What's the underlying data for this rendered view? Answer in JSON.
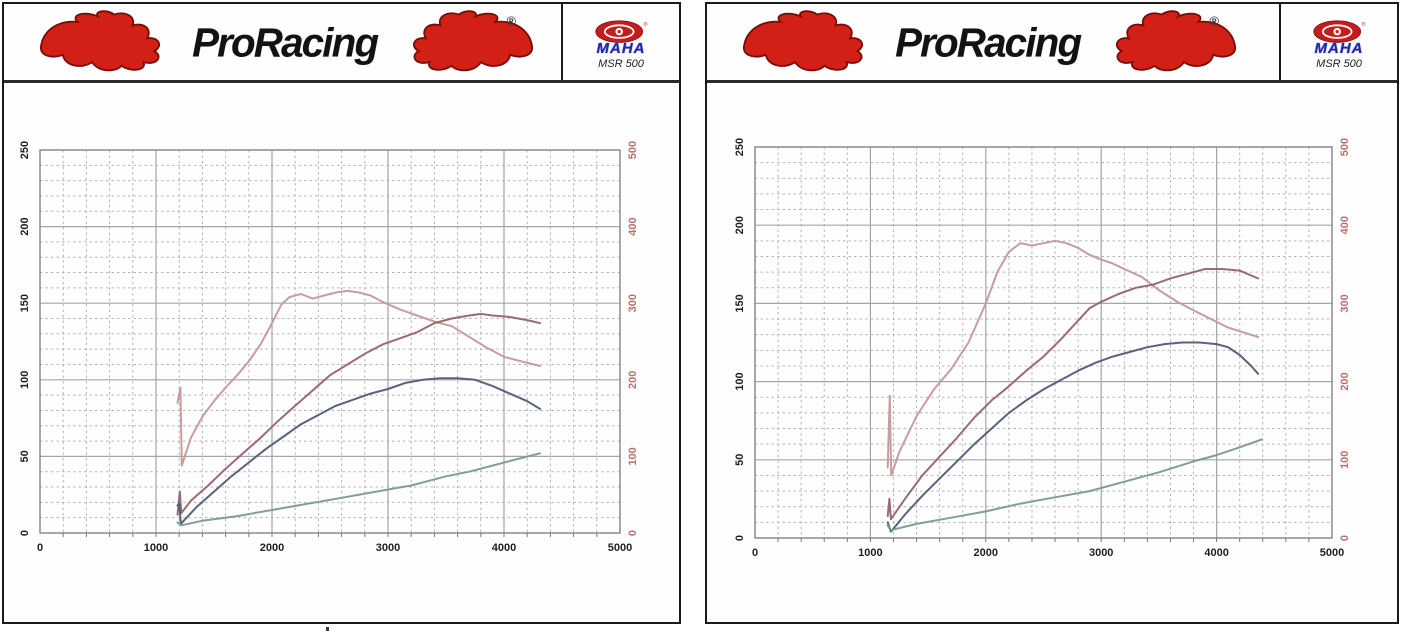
{
  "header": {
    "brand": "ProRacing",
    "reg": "®",
    "maha": "MAHA",
    "model": "MSR 500"
  },
  "colors": {
    "torque": "#c49898",
    "power_tuned": "#96636e",
    "power_stock": "#4f5b76",
    "loss": "#7b9b8b",
    "left_axis_label": "#1f1f1f",
    "right_axis_label": "#b5736c",
    "grid_major": "#a5a5a5",
    "grid_minor": "#b5b5b5",
    "flame_red": "#d32016",
    "maha_red": "#c41d1d",
    "maha_blue": "#2028b0"
  },
  "chart_data": [
    {
      "type": "line",
      "title": "",
      "x_range": [
        0,
        5000
      ],
      "x_ticks": [
        0,
        1000,
        2000,
        3000,
        4000,
        5000
      ],
      "x_minor_step": 200,
      "y_left_range": [
        0,
        250
      ],
      "y_left_ticks": [
        0,
        50,
        100,
        150,
        200,
        250
      ],
      "y_left_minor_step": 10,
      "y_right_range": [
        0,
        500
      ],
      "y_right_ticks": [
        0,
        100,
        200,
        300,
        400,
        500
      ],
      "grid": "dashed-minor",
      "legend": "none",
      "series": [
        {
          "id": "torque-curve",
          "axis": "right",
          "color": "#c49898",
          "points": [
            [
              1185,
              170
            ],
            [
              1210,
              190
            ],
            [
              1222,
              88
            ],
            [
              1300,
              124
            ],
            [
              1400,
              152
            ],
            [
              1500,
              172
            ],
            [
              1600,
              190
            ],
            [
              1700,
              206
            ],
            [
              1800,
              224
            ],
            [
              1900,
              246
            ],
            [
              2000,
              274
            ],
            [
              2080,
              298
            ],
            [
              2150,
              308
            ],
            [
              2250,
              312
            ],
            [
              2350,
              306
            ],
            [
              2450,
              310
            ],
            [
              2550,
              314
            ],
            [
              2650,
              316
            ],
            [
              2750,
              314
            ],
            [
              2850,
              310
            ],
            [
              2950,
              302
            ],
            [
              3100,
              292
            ],
            [
              3250,
              284
            ],
            [
              3400,
              276
            ],
            [
              3550,
              270
            ],
            [
              3700,
              256
            ],
            [
              3850,
              242
            ],
            [
              4000,
              230
            ],
            [
              4150,
              224
            ],
            [
              4310,
              218
            ]
          ]
        },
        {
          "id": "power-tuned-curve",
          "axis": "left",
          "color": "#96636e",
          "points": [
            [
              1185,
              12
            ],
            [
              1205,
              27
            ],
            [
              1218,
              13
            ],
            [
              1300,
              21
            ],
            [
              1450,
              31
            ],
            [
              1600,
              42
            ],
            [
              1750,
              52
            ],
            [
              1900,
              62
            ],
            [
              2050,
              73
            ],
            [
              2200,
              83
            ],
            [
              2350,
              93
            ],
            [
              2500,
              103
            ],
            [
              2650,
              110
            ],
            [
              2800,
              117
            ],
            [
              2950,
              123
            ],
            [
              3100,
              127
            ],
            [
              3250,
              131
            ],
            [
              3400,
              137
            ],
            [
              3550,
              140
            ],
            [
              3700,
              142
            ],
            [
              3800,
              143
            ],
            [
              3900,
              142
            ],
            [
              4050,
              141
            ],
            [
              4200,
              139
            ],
            [
              4310,
              137
            ]
          ]
        },
        {
          "id": "power-stock-curve",
          "axis": "left",
          "color": "#4f5b76",
          "points": [
            [
              1185,
              18
            ],
            [
              1200,
              19
            ],
            [
              1215,
              6
            ],
            [
              1350,
              17
            ],
            [
              1500,
              27
            ],
            [
              1650,
              37
            ],
            [
              1800,
              46
            ],
            [
              1950,
              55
            ],
            [
              2100,
              63
            ],
            [
              2250,
              71
            ],
            [
              2400,
              77
            ],
            [
              2550,
              83
            ],
            [
              2700,
              87
            ],
            [
              2850,
              91
            ],
            [
              3000,
              94
            ],
            [
              3150,
              98
            ],
            [
              3300,
              100
            ],
            [
              3450,
              101
            ],
            [
              3600,
              101
            ],
            [
              3750,
              100
            ],
            [
              3900,
              96
            ],
            [
              4050,
              91
            ],
            [
              4200,
              86
            ],
            [
              4310,
              81
            ]
          ]
        },
        {
          "id": "loss-power-curve",
          "axis": "left",
          "color": "#7b9b8b",
          "points": [
            [
              1185,
              7
            ],
            [
              1220,
              5
            ],
            [
              1400,
              8
            ],
            [
              1700,
              11
            ],
            [
              2000,
              15
            ],
            [
              2300,
              19
            ],
            [
              2600,
              23
            ],
            [
              2900,
              27
            ],
            [
              3200,
              31
            ],
            [
              3500,
              37
            ],
            [
              3700,
              40
            ],
            [
              3900,
              44
            ],
            [
              4100,
              48
            ],
            [
              4310,
              52
            ]
          ]
        }
      ]
    },
    {
      "type": "line",
      "title": "",
      "x_range": [
        0,
        5000
      ],
      "x_ticks": [
        0,
        1000,
        2000,
        3000,
        4000,
        5000
      ],
      "x_minor_step": 200,
      "y_left_range": [
        0,
        250
      ],
      "y_left_ticks": [
        0,
        50,
        100,
        150,
        200,
        250
      ],
      "y_left_minor_step": 10,
      "y_right_range": [
        0,
        500
      ],
      "y_right_ticks": [
        0,
        100,
        200,
        300,
        400,
        500
      ],
      "grid": "dashed-minor",
      "legend": "none",
      "series": [
        {
          "id": "torque-curve",
          "axis": "right",
          "color": "#c49898",
          "points": [
            [
              1150,
              90
            ],
            [
              1168,
              182
            ],
            [
              1180,
              80
            ],
            [
              1250,
              110
            ],
            [
              1400,
              156
            ],
            [
              1550,
              190
            ],
            [
              1700,
              216
            ],
            [
              1850,
              250
            ],
            [
              2000,
              300
            ],
            [
              2100,
              340
            ],
            [
              2200,
              366
            ],
            [
              2300,
              377
            ],
            [
              2400,
              374
            ],
            [
              2500,
              377
            ],
            [
              2600,
              380
            ],
            [
              2700,
              377
            ],
            [
              2800,
              371
            ],
            [
              2900,
              362
            ],
            [
              3000,
              356
            ],
            [
              3100,
              351
            ],
            [
              3200,
              344
            ],
            [
              3350,
              334
            ],
            [
              3500,
              317
            ],
            [
              3650,
              303
            ],
            [
              3800,
              291
            ],
            [
              3950,
              280
            ],
            [
              4100,
              269
            ],
            [
              4250,
              262
            ],
            [
              4360,
              257
            ]
          ]
        },
        {
          "id": "power-tuned-curve",
          "axis": "left",
          "color": "#96636e",
          "points": [
            [
              1150,
              14
            ],
            [
              1165,
              25
            ],
            [
              1178,
              12
            ],
            [
              1300,
              25
            ],
            [
              1450,
              40
            ],
            [
              1600,
              52
            ],
            [
              1750,
              64
            ],
            [
              1900,
              77
            ],
            [
              2050,
              88
            ],
            [
              2200,
              97
            ],
            [
              2350,
              107
            ],
            [
              2500,
              116
            ],
            [
              2650,
              127
            ],
            [
              2800,
              139
            ],
            [
              2900,
              147
            ],
            [
              3000,
              151
            ],
            [
              3150,
              156
            ],
            [
              3300,
              160
            ],
            [
              3450,
              162
            ],
            [
              3600,
              166
            ],
            [
              3750,
              169
            ],
            [
              3900,
              172
            ],
            [
              4050,
              172
            ],
            [
              4200,
              171
            ],
            [
              4360,
              166
            ]
          ]
        },
        {
          "id": "power-stock-curve",
          "axis": "left",
          "color": "#4f5b76",
          "points": [
            [
              1150,
              10
            ],
            [
              1178,
              4
            ],
            [
              1300,
              15
            ],
            [
              1450,
              27
            ],
            [
              1600,
              38
            ],
            [
              1750,
              49
            ],
            [
              1900,
              60
            ],
            [
              2050,
              70
            ],
            [
              2200,
              80
            ],
            [
              2350,
              88
            ],
            [
              2500,
              95
            ],
            [
              2650,
              101
            ],
            [
              2800,
              107
            ],
            [
              2950,
              112
            ],
            [
              3100,
              116
            ],
            [
              3250,
              119
            ],
            [
              3400,
              122
            ],
            [
              3550,
              124
            ],
            [
              3700,
              125
            ],
            [
              3850,
              125
            ],
            [
              4000,
              124
            ],
            [
              4100,
              122
            ],
            [
              4200,
              117
            ],
            [
              4300,
              110
            ],
            [
              4360,
              105
            ]
          ]
        },
        {
          "id": "loss-power-curve",
          "axis": "left",
          "color": "#7b9b8b",
          "points": [
            [
              1150,
              8
            ],
            [
              1178,
              5
            ],
            [
              1400,
              9
            ],
            [
              1700,
              13
            ],
            [
              2000,
              17
            ],
            [
              2300,
              22
            ],
            [
              2600,
              26
            ],
            [
              2900,
              30
            ],
            [
              3200,
              36
            ],
            [
              3500,
              42
            ],
            [
              3800,
              49
            ],
            [
              4000,
              53
            ],
            [
              4200,
              58
            ],
            [
              4390,
              63
            ]
          ]
        }
      ]
    }
  ]
}
